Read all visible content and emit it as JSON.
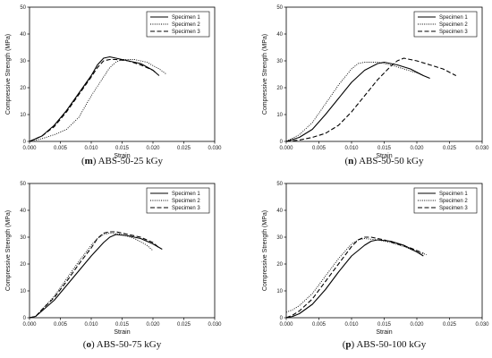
{
  "chart_data": [
    {
      "type": "line",
      "caption_letter": "m",
      "caption_text": "ABS-50-25 kGy",
      "xlabel": "Strain",
      "ylabel": "Compressive Strength (MPa)",
      "xlim": [
        0,
        0.03
      ],
      "ylim": [
        0,
        50
      ],
      "xticks": [
        "0.000",
        "0.005",
        "0.010",
        "0.015",
        "0.020",
        "0.025",
        "0.030"
      ],
      "yticks": [
        "0",
        "10",
        "20",
        "30",
        "40",
        "50"
      ],
      "legend_position": "top-right",
      "series": [
        {
          "name": "Specimen 1",
          "style": "solid",
          "points": [
            [
              0,
              0
            ],
            [
              0.002,
              2
            ],
            [
              0.004,
              6
            ],
            [
              0.006,
              11.5
            ],
            [
              0.008,
              18
            ],
            [
              0.01,
              24.5
            ],
            [
              0.011,
              28.5
            ],
            [
              0.012,
              31
            ],
            [
              0.013,
              31.5
            ],
            [
              0.014,
              31
            ],
            [
              0.016,
              30
            ],
            [
              0.018,
              29
            ],
            [
              0.02,
              26.5
            ],
            [
              0.021,
              24.5
            ]
          ]
        },
        {
          "name": "Specimen 2",
          "style": "dotted",
          "points": [
            [
              0,
              0
            ],
            [
              0.002,
              1
            ],
            [
              0.004,
              2.5
            ],
            [
              0.006,
              4.5
            ],
            [
              0.008,
              9
            ],
            [
              0.01,
              17
            ],
            [
              0.012,
              24
            ],
            [
              0.013,
              27.5
            ],
            [
              0.014,
              29.5
            ],
            [
              0.015,
              30.5
            ],
            [
              0.017,
              30.5
            ],
            [
              0.019,
              29.5
            ],
            [
              0.021,
              27
            ],
            [
              0.0222,
              25
            ]
          ]
        },
        {
          "name": "Specimen 3",
          "style": "dashed",
          "points": [
            [
              0,
              0
            ],
            [
              0.002,
              2
            ],
            [
              0.004,
              5.5
            ],
            [
              0.006,
              11
            ],
            [
              0.008,
              17.5
            ],
            [
              0.01,
              24
            ],
            [
              0.011,
              27.5
            ],
            [
              0.012,
              30
            ],
            [
              0.013,
              30.5
            ],
            [
              0.014,
              30.5
            ],
            [
              0.016,
              30
            ],
            [
              0.018,
              28.5
            ],
            [
              0.02,
              26.5
            ],
            [
              0.0205,
              25.5
            ]
          ]
        }
      ]
    },
    {
      "type": "line",
      "caption_letter": "n",
      "caption_text": "ABS-50-50 kGy",
      "xlabel": "Strain",
      "ylabel": "Compressive Strength (MPa)",
      "xlim": [
        0,
        0.03
      ],
      "ylim": [
        0,
        50
      ],
      "xticks": [
        "0.000",
        "0.005",
        "0.010",
        "0.015",
        "0.020",
        "0.025",
        "0.030"
      ],
      "yticks": [
        "0",
        "10",
        "20",
        "30",
        "40",
        "50"
      ],
      "legend_position": "top-right",
      "series": [
        {
          "name": "Specimen 1",
          "style": "solid",
          "points": [
            [
              0,
              0
            ],
            [
              0.002,
              1.5
            ],
            [
              0.004,
              4.5
            ],
            [
              0.006,
              10
            ],
            [
              0.008,
              16
            ],
            [
              0.01,
              22
            ],
            [
              0.012,
              26.5
            ],
            [
              0.014,
              29
            ],
            [
              0.015,
              29.5
            ],
            [
              0.017,
              28.5
            ],
            [
              0.019,
              27
            ],
            [
              0.021,
              24.5
            ],
            [
              0.022,
              23.5
            ]
          ]
        },
        {
          "name": "Specimen 2",
          "style": "dotted",
          "points": [
            [
              0,
              0
            ],
            [
              0.002,
              2.5
            ],
            [
              0.004,
              7
            ],
            [
              0.006,
              14
            ],
            [
              0.008,
              21
            ],
            [
              0.01,
              27
            ],
            [
              0.011,
              29
            ],
            [
              0.012,
              29.5
            ],
            [
              0.014,
              29.5
            ],
            [
              0.016,
              28.5
            ],
            [
              0.018,
              27
            ],
            [
              0.02,
              25.5
            ],
            [
              0.021,
              24.5
            ]
          ]
        },
        {
          "name": "Specimen 3",
          "style": "dashed",
          "points": [
            [
              0,
              0
            ],
            [
              0.002,
              0.5
            ],
            [
              0.004,
              1.5
            ],
            [
              0.006,
              3
            ],
            [
              0.008,
              6
            ],
            [
              0.01,
              11
            ],
            [
              0.012,
              17
            ],
            [
              0.014,
              23
            ],
            [
              0.016,
              28
            ],
            [
              0.017,
              30
            ],
            [
              0.018,
              31
            ],
            [
              0.02,
              30
            ],
            [
              0.022,
              28.5
            ],
            [
              0.024,
              27
            ],
            [
              0.026,
              24.5
            ]
          ]
        }
      ]
    },
    {
      "type": "line",
      "caption_letter": "o",
      "caption_text": "ABS-50-75 kGy",
      "xlabel": "Strain",
      "ylabel": "Compressive Strength (MPa)",
      "xlim": [
        0,
        0.03
      ],
      "ylim": [
        0,
        50
      ],
      "xticks": [
        "0.000",
        "0.005",
        "0.010",
        "0.015",
        "0.020",
        "0.025",
        "0.030"
      ],
      "yticks": [
        "0",
        "10",
        "20",
        "30",
        "40",
        "50"
      ],
      "legend_position": "top-right",
      "series": [
        {
          "name": "Specimen 1",
          "style": "solid",
          "points": [
            [
              0,
              0
            ],
            [
              0.001,
              0.5
            ],
            [
              0.002,
              2.5
            ],
            [
              0.004,
              6.5
            ],
            [
              0.006,
              12
            ],
            [
              0.008,
              17.5
            ],
            [
              0.01,
              23
            ],
            [
              0.012,
              28
            ],
            [
              0.013,
              30
            ],
            [
              0.014,
              31
            ],
            [
              0.016,
              30.5
            ],
            [
              0.018,
              29.5
            ],
            [
              0.02,
              27.5
            ],
            [
              0.0215,
              25.5
            ]
          ]
        },
        {
          "name": "Specimen 2",
          "style": "dotted",
          "points": [
            [
              0,
              0
            ],
            [
              0.001,
              0.5
            ],
            [
              0.002,
              3
            ],
            [
              0.004,
              8
            ],
            [
              0.006,
              14.5
            ],
            [
              0.008,
              21
            ],
            [
              0.01,
              27
            ],
            [
              0.011,
              29.5
            ],
            [
              0.012,
              31
            ],
            [
              0.013,
              31.5
            ],
            [
              0.015,
              31
            ],
            [
              0.017,
              29.5
            ],
            [
              0.019,
              27
            ],
            [
              0.02,
              25
            ]
          ]
        },
        {
          "name": "Specimen 3",
          "style": "dashed",
          "points": [
            [
              0,
              0
            ],
            [
              0.001,
              0.5
            ],
            [
              0.002,
              3
            ],
            [
              0.004,
              7.5
            ],
            [
              0.006,
              13.5
            ],
            [
              0.008,
              20
            ],
            [
              0.01,
              26
            ],
            [
              0.011,
              29.5
            ],
            [
              0.012,
              31.5
            ],
            [
              0.013,
              32
            ],
            [
              0.014,
              32
            ],
            [
              0.016,
              31
            ],
            [
              0.018,
              30
            ],
            [
              0.02,
              28
            ],
            [
              0.021,
              26
            ]
          ]
        }
      ]
    },
    {
      "type": "line",
      "caption_letter": "p",
      "caption_text": "ABS-50-100 kGy",
      "xlabel": "Strain",
      "ylabel": "Compressive Strength (MPa)",
      "xlim": [
        0,
        0.03
      ],
      "ylim": [
        0,
        50
      ],
      "xticks": [
        "0.000",
        "0.005",
        "0.010",
        "0.015",
        "0.020",
        "0.025",
        "0.030"
      ],
      "yticks": [
        "0",
        "10",
        "20",
        "30",
        "40",
        "50"
      ],
      "legend_position": "top-right",
      "series": [
        {
          "name": "Specimen 1",
          "style": "solid",
          "points": [
            [
              0,
              0
            ],
            [
              0.001,
              0.5
            ],
            [
              0.002,
              1.5
            ],
            [
              0.004,
              5
            ],
            [
              0.006,
              10.5
            ],
            [
              0.008,
              17
            ],
            [
              0.01,
              23
            ],
            [
              0.012,
              27
            ],
            [
              0.013,
              28.5
            ],
            [
              0.014,
              29
            ],
            [
              0.016,
              28.5
            ],
            [
              0.018,
              27
            ],
            [
              0.02,
              24.5
            ],
            [
              0.021,
              23
            ]
          ]
        },
        {
          "name": "Specimen 2",
          "style": "dotted",
          "points": [
            [
              0,
              2
            ],
            [
              0.001,
              3
            ],
            [
              0.002,
              4.5
            ],
            [
              0.004,
              9
            ],
            [
              0.006,
              15.5
            ],
            [
              0.008,
              22
            ],
            [
              0.01,
              27.5
            ],
            [
              0.011,
              29
            ],
            [
              0.012,
              29.5
            ],
            [
              0.014,
              29
            ],
            [
              0.016,
              28
            ],
            [
              0.018,
              26.5
            ],
            [
              0.02,
              24.5
            ],
            [
              0.0215,
              23.5
            ]
          ]
        },
        {
          "name": "Specimen 3",
          "style": "dashed",
          "points": [
            [
              0,
              0
            ],
            [
              0.001,
              1
            ],
            [
              0.002,
              2.5
            ],
            [
              0.004,
              7
            ],
            [
              0.006,
              13.5
            ],
            [
              0.008,
              20
            ],
            [
              0.01,
              26.5
            ],
            [
              0.011,
              29
            ],
            [
              0.012,
              30
            ],
            [
              0.013,
              30
            ],
            [
              0.015,
              29
            ],
            [
              0.017,
              27.5
            ],
            [
              0.019,
              26
            ],
            [
              0.021,
              24
            ]
          ]
        }
      ]
    }
  ]
}
